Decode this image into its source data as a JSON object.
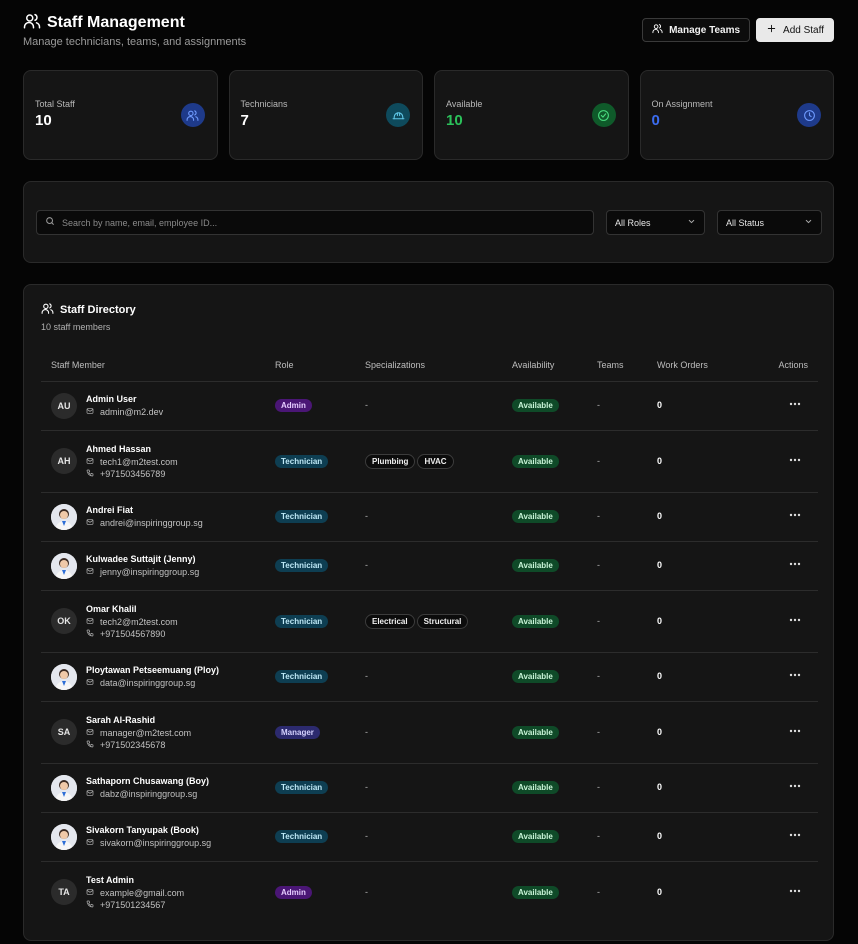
{
  "header": {
    "title": "Staff Management",
    "subtitle": "Manage technicians, teams, and assignments",
    "manage_teams_label": "Manage Teams",
    "add_staff_label": "Add Staff"
  },
  "stats": [
    {
      "label": "Total Staff",
      "value": "10",
      "icon": "users-icon",
      "color": "#1e3a8a"
    },
    {
      "label": "Technicians",
      "value": "7",
      "icon": "hard-hat-icon",
      "color": "#0e4a5c"
    },
    {
      "label": "Available",
      "value": "10",
      "icon": "check-circle-icon",
      "color": "#0f5a2a"
    },
    {
      "label": "On Assignment",
      "value": "0",
      "icon": "clock-icon",
      "color": "#1e3a8a"
    }
  ],
  "filters": {
    "search_placeholder": "Search by name, email, employee ID...",
    "role_value": "All Roles",
    "status_value": "All Status"
  },
  "directory": {
    "title": "Staff Directory",
    "count": "10 staff members",
    "columns": [
      "Staff Member",
      "Role",
      "Specializations",
      "Availability",
      "Teams",
      "Work Orders",
      "Actions"
    ],
    "rows": [
      {
        "initials": "AU",
        "photo": false,
        "name": "Admin User",
        "email": "admin@m2.dev",
        "phone": "",
        "role": "Admin",
        "specs": [],
        "availability": "Available",
        "teams": "-",
        "work_orders": "0"
      },
      {
        "initials": "AH",
        "photo": false,
        "name": "Ahmed Hassan",
        "email": "tech1@m2test.com",
        "phone": "+971503456789",
        "role": "Technician",
        "specs": [
          "Plumbing",
          "HVAC"
        ],
        "availability": "Available",
        "teams": "-",
        "work_orders": "0"
      },
      {
        "initials": "",
        "photo": true,
        "name": "Andrei Fiat",
        "email": "andrei@inspiringgroup.sg",
        "phone": "",
        "role": "Technician",
        "specs": [],
        "availability": "Available",
        "teams": "-",
        "work_orders": "0"
      },
      {
        "initials": "",
        "photo": true,
        "name": "Kulwadee Suttajit (Jenny)",
        "email": "jenny@inspiringgroup.sg",
        "phone": "",
        "role": "Technician",
        "specs": [],
        "availability": "Available",
        "teams": "-",
        "work_orders": "0"
      },
      {
        "initials": "OK",
        "photo": false,
        "name": "Omar Khalil",
        "email": "tech2@m2test.com",
        "phone": "+971504567890",
        "role": "Technician",
        "specs": [
          "Electrical",
          "Structural"
        ],
        "availability": "Available",
        "teams": "-",
        "work_orders": "0"
      },
      {
        "initials": "",
        "photo": true,
        "name": "Ploytawan Petseemuang (Ploy)",
        "email": "data@inspiringgroup.sg",
        "phone": "",
        "role": "Technician",
        "specs": [],
        "availability": "Available",
        "teams": "-",
        "work_orders": "0"
      },
      {
        "initials": "SA",
        "photo": false,
        "name": "Sarah Al-Rashid",
        "email": "manager@m2test.com",
        "phone": "+971502345678",
        "role": "Manager",
        "specs": [],
        "availability": "Available",
        "teams": "-",
        "work_orders": "0"
      },
      {
        "initials": "",
        "photo": true,
        "name": "Sathaporn Chusawang (Boy)",
        "email": "dabz@inspiringgroup.sg",
        "phone": "",
        "role": "Technician",
        "specs": [],
        "availability": "Available",
        "teams": "-",
        "work_orders": "0"
      },
      {
        "initials": "",
        "photo": true,
        "name": "Sivakorn Tanyupak (Book)",
        "email": "sivakorn@inspiringgroup.sg",
        "phone": "",
        "role": "Technician",
        "specs": [],
        "availability": "Available",
        "teams": "-",
        "work_orders": "0"
      },
      {
        "initials": "TA",
        "photo": false,
        "name": "Test Admin",
        "email": "example@gmail.com",
        "phone": "+971501234567",
        "role": "Admin",
        "specs": [],
        "availability": "Available",
        "teams": "-",
        "work_orders": "0"
      }
    ],
    "empty_spec": "-"
  }
}
